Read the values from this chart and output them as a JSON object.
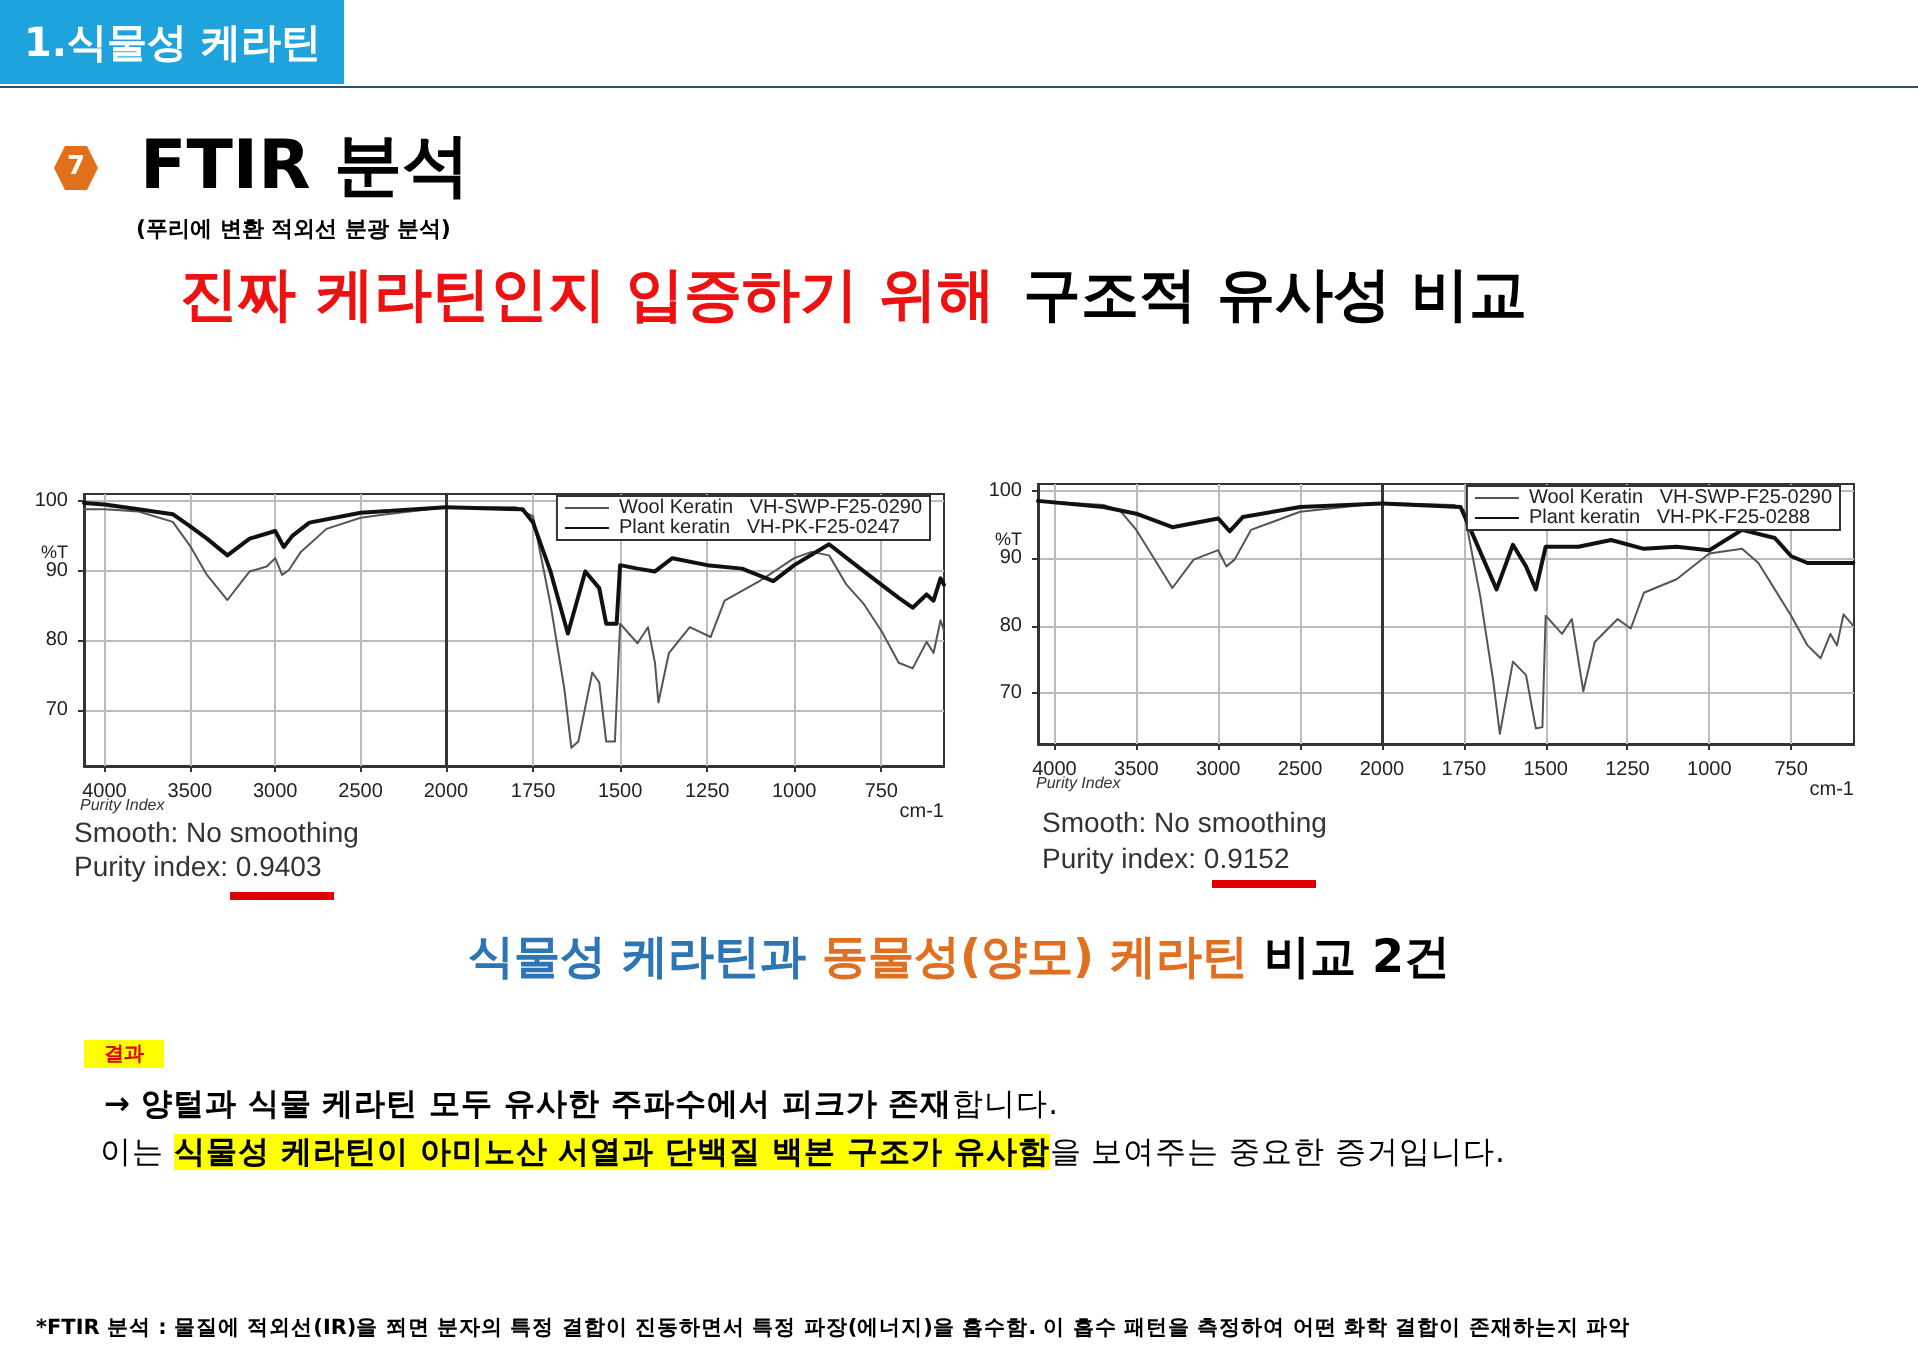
{
  "chart_data": [
    {
      "type": "line",
      "title": "FTIR 분석",
      "subtitle": "(푸리에 변환 적외선 분광 분석)",
      "ylabel": "%T",
      "annotations": [
        "1.식물성 케라틴",
        "7",
        "진짜 케라틴인지 입증하기 위해",
        "구조적 유사성 비교",
        "식물성 케라틴과",
        "동물성(양모) 케라틴",
        "비교 2건",
        "결과",
        "→ 양털과 식물 케라틴 모두 유사한 주파수에서 피크가 존재",
        "합니다.",
        "이는",
        "식물성 케라틴이 아미노산 서열과 단백질 백본 구조가 유사함",
        "을 보여주는 중요한 증거입니다.",
        "*FTIR 분석 : 물질에 적외선(IR)을 쬐면 분자의 특정 결합이 진동하면서 특정 파장(에너지)을 흡수함. 이 흡수 패턴을 측정하여 어떤 화학 결합이 존재하는지 파악",
        "Purity Index",
        "Smooth: No smoothing",
        "Purity index: 0.9403"
      ],
      "xlim": [
        4120,
        2000
      ],
      "xticks": [
        4000,
        3500,
        3000,
        2500,
        2000
      ],
      "ylim": [
        62,
        101
      ],
      "yticks": [
        70,
        80,
        90,
        100
      ],
      "grid": true,
      "marker": "none",
      "line_style": "solid",
      "series": [
        {
          "color": "#555555",
          "x": [
            4120,
            4000,
            3800,
            3600,
            3500,
            3400,
            3280,
            3150,
            3050,
            3000,
            2960,
            2920,
            2850,
            2700,
            2500,
            2350,
            2000
          ],
          "values": [
            98.8,
            98.8,
            98.5,
            97,
            93.6,
            89.4,
            85.8,
            89.9,
            90.6,
            91.8,
            89.4,
            90.1,
            92.7,
            96,
            97.6,
            98.1,
            99.1
          ]
        },
        {
          "color": "#111111",
          "x": [
            4120,
            4000,
            3800,
            3600,
            3500,
            3400,
            3280,
            3150,
            3000,
            2950,
            2900,
            2800,
            2500,
            2000
          ],
          "values": [
            99.7,
            99.5,
            98.8,
            98.1,
            96.4,
            94.6,
            92.2,
            94.6,
            95.7,
            93.4,
            95,
            96.9,
            98.3,
            99.1
          ]
        }
      ]
    },
    {
      "type": "line",
      "xlabel": "cm-1",
      "xlim": [
        2000,
        570
      ],
      "xticks": [
        1750,
        1500,
        1250,
        1000,
        750
      ],
      "ylim": [
        62,
        101
      ],
      "yticks": [
        70,
        80,
        90,
        100
      ],
      "tick_labels": "x",
      "grid": true,
      "legend": "top right",
      "marker": "none",
      "line_style": "solid",
      "series": [
        {
          "name": "Wool Keratin   VH-SWP-F25-0290",
          "color": "#555555",
          "x": [
            2000,
            1800,
            1750,
            1700,
            1660,
            1640,
            1620,
            1580,
            1560,
            1540,
            1515,
            1500,
            1450,
            1420,
            1400,
            1390,
            1360,
            1300,
            1240,
            1200,
            1100,
            1000,
            950,
            900,
            850,
            800,
            750,
            700,
            660,
            620,
            600,
            580,
            570
          ],
          "values": [
            99.1,
            99.1,
            97.8,
            85.2,
            73,
            64.6,
            65.5,
            75.4,
            74,
            65.5,
            65.5,
            82.4,
            79.6,
            81.9,
            76.8,
            71.1,
            78.2,
            81.9,
            80.5,
            85.7,
            88.5,
            91.8,
            92.7,
            92.2,
            88,
            85.2,
            81.4,
            76.8,
            76,
            79.8,
            78.2,
            82.9,
            81.4
          ]
        },
        {
          "name": "Plant keratin   VH-PK-F25-0247",
          "color": "#111111",
          "x": [
            2000,
            1780,
            1750,
            1700,
            1650,
            1600,
            1560,
            1540,
            1510,
            1500,
            1450,
            1400,
            1350,
            1250,
            1150,
            1060,
            1000,
            900,
            800,
            700,
            660,
            620,
            600,
            580,
            570
          ],
          "values": [
            99.1,
            98.8,
            96.9,
            89.9,
            81,
            89.9,
            87.5,
            82.4,
            82.4,
            90.8,
            90.3,
            89.9,
            91.8,
            90.8,
            90.3,
            88.5,
            90.8,
            93.8,
            89.9,
            86.1,
            84.7,
            86.6,
            85.7,
            88.9,
            88
          ]
        }
      ]
    },
    {
      "type": "line",
      "ylabel": "%T",
      "annotations": [
        "Purity Index",
        "Smooth: No smoothing",
        "Purity index: 0.9152"
      ],
      "xlim": [
        4100,
        2000
      ],
      "xticks": [
        4000,
        3500,
        3000,
        2500,
        2000
      ],
      "ylim": [
        62.5,
        101
      ],
      "yticks": [
        70,
        80,
        90,
        100
      ],
      "grid": true,
      "marker": "none",
      "line_style": "solid",
      "series": [
        {
          "color": "#555555",
          "x": [
            4100,
            3700,
            3600,
            3500,
            3400,
            3280,
            3150,
            3000,
            2950,
            2900,
            2800,
            2500,
            2000
          ],
          "values": [
            98.5,
            97.9,
            97.1,
            94.2,
            90.3,
            85.6,
            89.8,
            91.2,
            88.8,
            89.8,
            94.2,
            96.9,
            98.2
          ]
        },
        {
          "color": "#111111",
          "x": [
            4100,
            3700,
            3500,
            3280,
            3000,
            2930,
            2850,
            2500,
            2000
          ],
          "values": [
            98.5,
            97.6,
            96.6,
            94.6,
            95.9,
            94,
            96.1,
            97.6,
            98.1
          ]
        }
      ]
    },
    {
      "type": "line",
      "xlabel": "cm-1",
      "xlim": [
        2000,
        558
      ],
      "xticks": [
        1750,
        1500,
        1250,
        1000,
        750
      ],
      "ylim": [
        62.5,
        101
      ],
      "yticks": [
        70,
        80,
        90,
        100
      ],
      "tick_labels": "x",
      "grid": true,
      "legend": "top right",
      "marker": "none",
      "line_style": "solid",
      "series": [
        {
          "name": "Wool Keratin   VH-SWP-F25-0290",
          "color": "#555555",
          "x": [
            2000,
            1780,
            1750,
            1700,
            1660,
            1640,
            1600,
            1560,
            1530,
            1510,
            1500,
            1450,
            1420,
            1385,
            1350,
            1280,
            1240,
            1200,
            1100,
            1000,
            900,
            850,
            750,
            700,
            660,
            630,
            610,
            590,
            560
          ],
          "values": [
            98.2,
            97.9,
            97.1,
            84.4,
            71.8,
            64,
            74.7,
            72.7,
            64.8,
            65,
            81.5,
            78.8,
            81,
            70.3,
            77.6,
            81,
            79.6,
            84.9,
            86.9,
            90.7,
            91.4,
            89.3,
            81.5,
            77.1,
            75.2,
            78.8,
            77.1,
            81.7,
            80
          ]
        },
        {
          "name": "Plant keratin   VH-PK-F25-0288",
          "color": "#111111",
          "x": [
            2000,
            1760,
            1720,
            1650,
            1600,
            1560,
            1530,
            1500,
            1400,
            1300,
            1200,
            1100,
            1000,
            900,
            800,
            750,
            700,
            560
          ],
          "values": [
            98.1,
            97.6,
            93.2,
            85.4,
            92,
            88.8,
            85.4,
            91.7,
            91.7,
            92.7,
            91.4,
            91.7,
            91.2,
            94.2,
            93,
            90.3,
            89.3,
            89.3
          ]
        }
      ]
    }
  ]
}
